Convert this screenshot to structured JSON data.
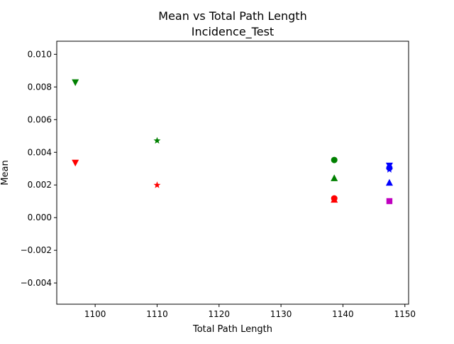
{
  "chart_data": {
    "type": "scatter",
    "title": "Mean vs Total Path Length",
    "subtitle": "Incidence_Test",
    "xlabel": "Total Path Length",
    "ylabel": "Mean",
    "xlim": [
      1093.8,
      1150.6
    ],
    "ylim": [
      -0.0053,
      0.0108
    ],
    "x_ticks": [
      1100,
      1110,
      1120,
      1130,
      1140,
      1150
    ],
    "y_ticks": [
      -0.004,
      -0.002,
      0.0,
      0.002,
      0.004,
      0.006,
      0.008,
      0.01
    ],
    "x_tick_labels": [
      "1100",
      "1110",
      "1120",
      "1130",
      "1140",
      "1150"
    ],
    "y_tick_labels": [
      "−0.004",
      "−0.002",
      "0.000",
      "0.002",
      "0.004",
      "0.006",
      "0.008",
      "0.010"
    ],
    "grid": false,
    "legend": false,
    "colors": {
      "green": "#008000",
      "red": "#ff0000",
      "blue": "#0000ff",
      "magenta": "#bf00bf",
      "axis": "#000000"
    },
    "points": [
      {
        "x": 1096.8,
        "y": 0.00829,
        "marker": "triangle-down",
        "color": "green"
      },
      {
        "x": 1096.8,
        "y": 0.00337,
        "marker": "triangle-down",
        "color": "red"
      },
      {
        "x": 1110.0,
        "y": 0.00471,
        "marker": "star",
        "color": "green"
      },
      {
        "x": 1110.0,
        "y": 0.00199,
        "marker": "star",
        "color": "red"
      },
      {
        "x": 1138.6,
        "y": 0.00353,
        "marker": "circle",
        "color": "green"
      },
      {
        "x": 1138.6,
        "y": 0.00241,
        "marker": "triangle-up",
        "color": "green"
      },
      {
        "x": 1138.6,
        "y": 0.00118,
        "marker": "circle",
        "color": "red"
      },
      {
        "x": 1138.6,
        "y": 0.00109,
        "marker": "triangle-up",
        "color": "red"
      },
      {
        "x": 1147.5,
        "y": 0.00319,
        "marker": "triangle-down",
        "color": "blue"
      },
      {
        "x": 1147.5,
        "y": 0.00304,
        "marker": "circle",
        "color": "blue"
      },
      {
        "x": 1147.5,
        "y": 0.00294,
        "marker": "star",
        "color": "blue"
      },
      {
        "x": 1147.5,
        "y": 0.00213,
        "marker": "triangle-up",
        "color": "blue"
      },
      {
        "x": 1147.5,
        "y": 0.00101,
        "marker": "square",
        "color": "magenta"
      }
    ]
  }
}
